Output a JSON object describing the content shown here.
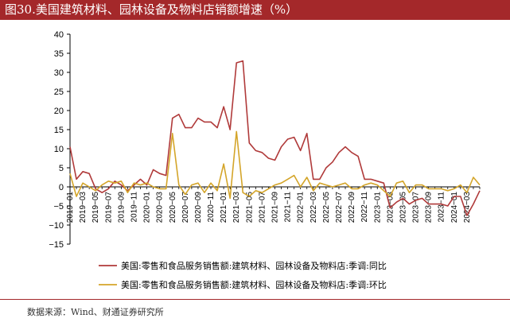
{
  "header": {
    "title": "图30.美国建筑材料、园林设备及物料店销额增速（%）"
  },
  "footer": {
    "source": "数据来源：Wind、财通证券研究所"
  },
  "colors": {
    "title_bg": "#a4282a",
    "series_yoy": "#b03a3a",
    "series_mom": "#d4a52a"
  },
  "chart_data": {
    "type": "line",
    "title": "美国建筑材料、园林设备及物料店销额增速（%）",
    "ylim": [
      -15,
      40
    ],
    "yticks": [
      -15,
      -10,
      -5,
      0,
      5,
      10,
      15,
      20,
      25,
      30,
      35,
      40
    ],
    "ytick_labels": [
      "−15",
      "−10",
      "−5",
      "0",
      "5",
      "10",
      "15",
      "20",
      "25",
      "30",
      "35",
      "40"
    ],
    "grid": false,
    "legend_position": "bottom",
    "x": [
      "2019-01",
      "2019-02",
      "2019-03",
      "2019-04",
      "2019-05",
      "2019-06",
      "2019-07",
      "2019-08",
      "2019-09",
      "2019-10",
      "2019-11",
      "2019-12",
      "2020-01",
      "2020-02",
      "2020-03",
      "2020-04",
      "2020-05",
      "2020-06",
      "2020-07",
      "2020-08",
      "2020-09",
      "2020-10",
      "2020-11",
      "2020-12",
      "2021-01",
      "2021-02",
      "2021-03",
      "2021-04",
      "2021-05",
      "2021-06",
      "2021-07",
      "2021-08",
      "2021-09",
      "2021-10",
      "2021-11",
      "2021-12",
      "2022-01",
      "2022-02",
      "2022-03",
      "2022-04",
      "2022-05",
      "2022-06",
      "2022-07",
      "2022-08",
      "2022-09",
      "2022-10",
      "2022-11",
      "2022-12",
      "2023-01",
      "2023-02",
      "2023-03",
      "2023-04",
      "2023-05",
      "2023-06",
      "2023-07",
      "2023-08",
      "2023-09",
      "2023-10",
      "2023-11",
      "2023-12",
      "2024-01",
      "2024-02",
      "2024-03",
      "2024-04",
      "2024-05"
    ],
    "xtick_labels": [
      "2019−01",
      "2019−03",
      "2019−05",
      "2019−07",
      "2019−09",
      "2019−11",
      "2020−01",
      "2020−03",
      "2020−05",
      "2020−07",
      "2020−09",
      "2020−11",
      "2021−01",
      "2021−03",
      "2021−05",
      "2021−07",
      "2021−09",
      "2021−11",
      "2022−01",
      "2022−03",
      "2022−05",
      "2022−07",
      "2022−09",
      "2022−11",
      "2023−01",
      "2023−03",
      "2023−05",
      "2023−07",
      "2023−09",
      "2023−11",
      "2024−01",
      "2024−03"
    ],
    "series": [
      {
        "name": "美国:零售和食品服务销售额:建筑材料、园林设备及物料店:季调:同比",
        "color": "#b03a3a",
        "values": [
          10.5,
          2.0,
          4.0,
          3.5,
          -0.5,
          -1.5,
          -0.5,
          1.5,
          0.5,
          -1.0,
          0.5,
          2.0,
          0.5,
          4.5,
          3.5,
          3.0,
          18.0,
          19.0,
          15.5,
          15.5,
          18.0,
          17.0,
          17.0,
          15.5,
          21.0,
          15.0,
          32.5,
          33.0,
          11.5,
          9.5,
          9.0,
          7.5,
          7.0,
          10.5,
          12.5,
          13.0,
          9.5,
          14.0,
          2.0,
          2.0,
          5.0,
          6.5,
          9.0,
          10.5,
          9.0,
          8.0,
          2.0,
          2.0,
          1.5,
          1.0,
          -5.5,
          -4.0,
          -3.0,
          -4.5,
          -3.5,
          -3.0,
          -4.5,
          -4.5,
          -4.5,
          -5.0,
          -2.5,
          -2.5,
          -7.5,
          -4.5,
          -1.0
        ]
      },
      {
        "name": "美国:零售和食品服务销售额:建筑材料、园林设备及物料店:季调:环比",
        "color": "#d4a52a",
        "values": [
          3.5,
          -2.5,
          1.0,
          0.0,
          -1.0,
          0.5,
          1.5,
          1.0,
          1.5,
          -1.5,
          1.0,
          0.5,
          1.0,
          0.0,
          -0.5,
          -0.5,
          14.0,
          0.5,
          -2.0,
          0.5,
          1.0,
          -1.5,
          1.0,
          -1.0,
          6.0,
          -3.0,
          14.5,
          -1.5,
          -2.5,
          -1.0,
          -1.5,
          -0.5,
          0.5,
          1.0,
          2.0,
          3.0,
          0.0,
          2.5,
          -1.0,
          1.0,
          0.5,
          0.0,
          0.5,
          1.0,
          -0.5,
          -0.5,
          0.5,
          1.0,
          0.5,
          -1.0,
          -2.5,
          1.0,
          1.5,
          -1.5,
          0.5,
          0.5,
          -0.5,
          -0.5,
          -0.5,
          -1.0,
          -0.5,
          0.5,
          -1.5,
          2.5,
          0.5
        ]
      }
    ]
  }
}
